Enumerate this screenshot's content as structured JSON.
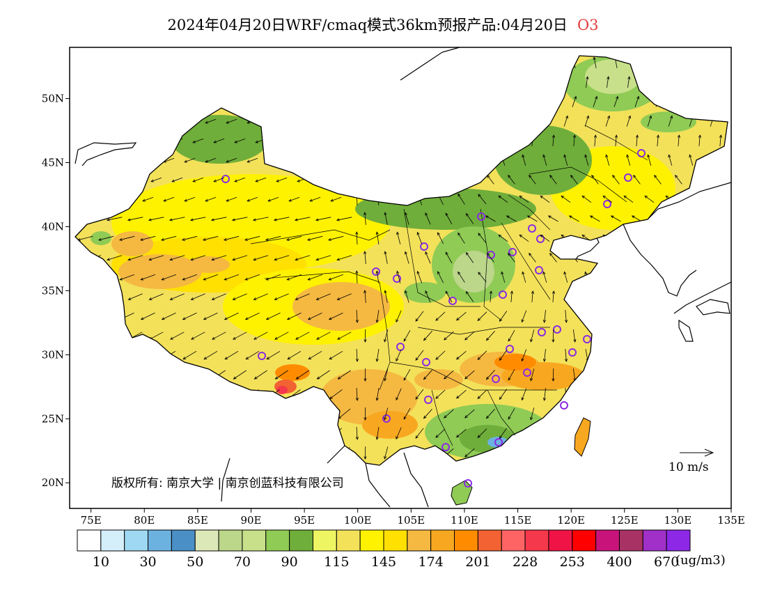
{
  "title": {
    "text": "2024年04月20日WRF/cmaq模式36km预报产品:04月20日",
    "pollutant": "O3"
  },
  "axes": {
    "lon_labels": [
      "75E",
      "80E",
      "85E",
      "90E",
      "95E",
      "100E",
      "105E",
      "110E",
      "115E",
      "120E",
      "125E",
      "130E",
      "135E"
    ],
    "lat_labels": [
      "50N",
      "45N",
      "40N",
      "35N",
      "30N",
      "25N",
      "20N"
    ],
    "lon_range": [
      73,
      135
    ],
    "lat_range": [
      18,
      54
    ]
  },
  "copyright": "版权所有: 南京大学 | 南京创蓝科技有限公司",
  "wind_reference": {
    "label": "10 m/s",
    "speed_ms": 10
  },
  "colorbar": {
    "unit": "(ug/m3)",
    "tick_labels": [
      "10",
      "30",
      "50",
      "70",
      "90",
      "115",
      "145",
      "174",
      "201",
      "228",
      "253",
      "400",
      "670"
    ],
    "colors": [
      "#ffffff",
      "#d4eefa",
      "#9ed8f2",
      "#6cb2e0",
      "#4a8fc6",
      "#dde8b8",
      "#bcd68a",
      "#c8e08a",
      "#8fcb55",
      "#6fae3a",
      "#eef562",
      "#f3e15a",
      "#fff200",
      "#ffe000",
      "#f5b942",
      "#f8a820",
      "#ff8c00",
      "#f26232",
      "#ff6464",
      "#f5384b",
      "#f01446",
      "#ff0000",
      "#c8147a",
      "#a83264",
      "#a030c8",
      "#8c28e6"
    ]
  },
  "colors": {
    "ocean": "#ffffff",
    "coast": "#000000",
    "station_marker": "#8a2be2",
    "land_outside": "#ffffff"
  },
  "stations_note_visible": false
}
